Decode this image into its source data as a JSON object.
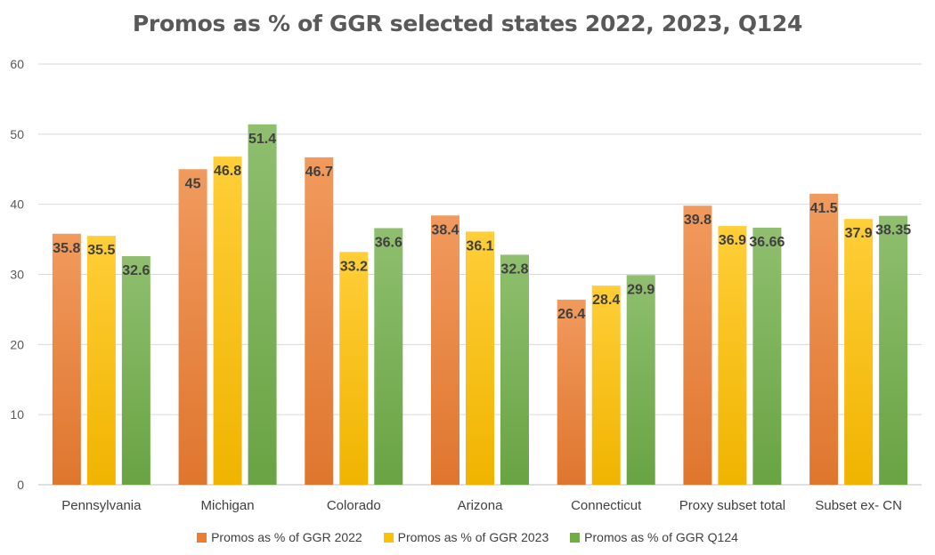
{
  "chart_data": {
    "type": "bar",
    "title": "Promos as % of GGR selected states 2022, 2023, Q124",
    "xlabel": "",
    "ylabel": "",
    "ylim": [
      0,
      60
    ],
    "yticks": [
      0,
      10,
      20,
      30,
      40,
      50,
      60
    ],
    "grid": true,
    "legend_position": "bottom",
    "categories": [
      "Pennsylvania",
      "Michigan",
      "Colorado",
      "Arizona",
      "Connecticut",
      "Proxy subset total",
      "Subset ex- CN"
    ],
    "series": [
      {
        "name": "Promos as % of GGR 2022",
        "color": "#ED7D31",
        "values": [
          35.8,
          45,
          46.7,
          38.4,
          26.4,
          39.8,
          41.5
        ],
        "labels": [
          "35.8",
          "45",
          "46.7",
          "38.4",
          "26.4",
          "39.8",
          "41.5"
        ]
      },
      {
        "name": "Promos as % of GGR 2023",
        "color": "#FFC000",
        "values": [
          35.5,
          46.8,
          33.2,
          36.1,
          28.4,
          36.9,
          37.9
        ],
        "labels": [
          "35.5",
          "46.8",
          "33.2",
          "36.1",
          "28.4",
          "36.9",
          "37.9"
        ]
      },
      {
        "name": "Promos as % of GGR Q124",
        "color": "#70AD47",
        "values": [
          32.6,
          51.4,
          36.6,
          32.8,
          29.9,
          36.66,
          38.35
        ],
        "labels": [
          "32.6",
          "51.4",
          "36.6",
          "32.8",
          "29.9",
          "36.66",
          "38.35"
        ]
      }
    ]
  }
}
